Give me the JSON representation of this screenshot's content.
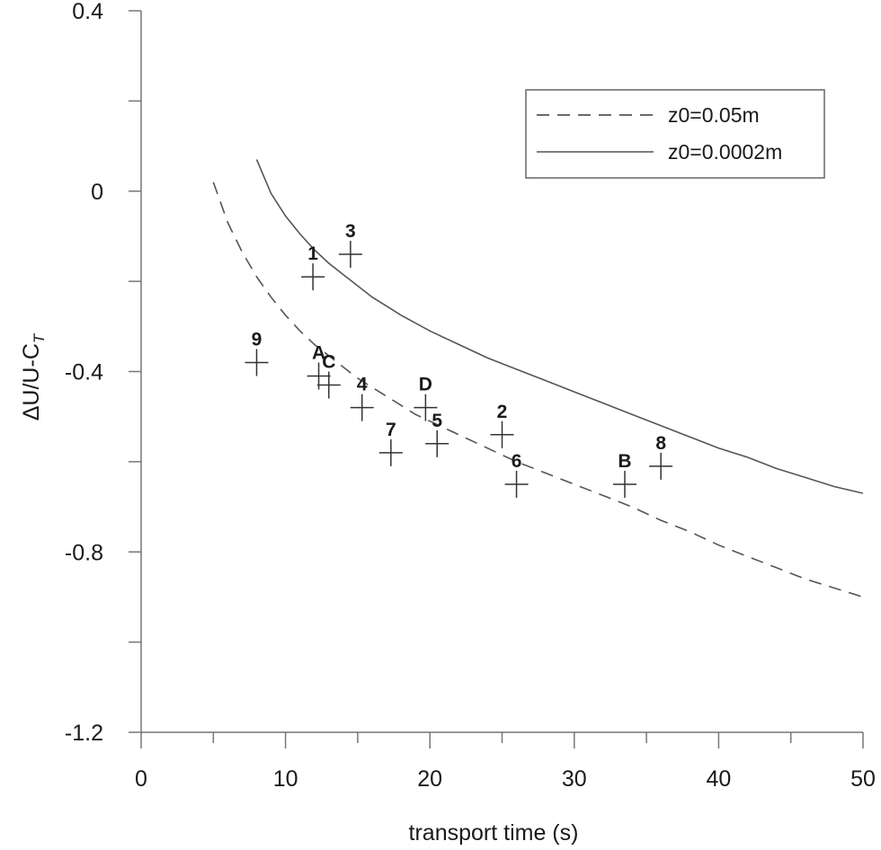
{
  "chart_data": {
    "type": "scatter",
    "title": "",
    "xlabel": "transport time (s)",
    "ylabel": "ΔU/U-C",
    "ylabel_subscript": "T",
    "xlim": [
      0,
      50
    ],
    "ylim": [
      -1.2,
      0.4
    ],
    "x_ticks": [
      0,
      10,
      20,
      30,
      40,
      50
    ],
    "x_tick_labels": [
      "0",
      "10",
      "20",
      "30",
      "40",
      "50"
    ],
    "x_minor_step": 5,
    "y_ticks": [
      -1.2,
      -0.8,
      -0.4,
      0,
      0.4
    ],
    "y_tick_labels": [
      "-1.2",
      "-0.8",
      "-0.4",
      "0",
      "0.4"
    ],
    "y_minor_step": 0.2,
    "grid": false,
    "legend_position": "top-right",
    "series": [
      {
        "name": "z0=0.05m",
        "style": "dashed",
        "color": "#555555",
        "x": [
          5,
          6,
          7,
          8,
          9,
          10,
          11,
          12,
          13,
          14,
          15,
          16,
          17,
          18,
          19,
          20,
          22,
          24,
          26,
          28,
          30,
          32,
          34,
          36,
          38,
          40,
          42,
          44,
          46,
          48,
          50
        ],
        "y": [
          0.02,
          -0.07,
          -0.135,
          -0.19,
          -0.235,
          -0.275,
          -0.31,
          -0.34,
          -0.365,
          -0.39,
          -0.415,
          -0.435,
          -0.455,
          -0.475,
          -0.495,
          -0.51,
          -0.54,
          -0.57,
          -0.6,
          -0.625,
          -0.65,
          -0.675,
          -0.7,
          -0.73,
          -0.755,
          -0.785,
          -0.81,
          -0.835,
          -0.86,
          -0.88,
          -0.9
        ]
      },
      {
        "name": "z0=0.0002m",
        "style": "solid",
        "color": "#555555",
        "x": [
          8,
          9,
          10,
          11,
          12,
          13,
          14,
          15,
          16,
          17,
          18,
          20,
          22,
          24,
          26,
          28,
          30,
          32,
          34,
          36,
          38,
          40,
          42,
          44,
          46,
          48,
          50
        ],
        "y": [
          0.07,
          -0.005,
          -0.055,
          -0.095,
          -0.13,
          -0.16,
          -0.185,
          -0.21,
          -0.235,
          -0.255,
          -0.275,
          -0.31,
          -0.34,
          -0.37,
          -0.395,
          -0.42,
          -0.445,
          -0.47,
          -0.495,
          -0.52,
          -0.545,
          -0.57,
          -0.59,
          -0.615,
          -0.635,
          -0.655,
          -0.67
        ]
      }
    ],
    "points": [
      {
        "label": "1",
        "x": 11.9,
        "y": -0.19
      },
      {
        "label": "3",
        "x": 14.5,
        "y": -0.14
      },
      {
        "label": "9",
        "x": 8.0,
        "y": -0.38
      },
      {
        "label": "A",
        "x": 12.3,
        "y": -0.41
      },
      {
        "label": "C",
        "x": 13.0,
        "y": -0.43
      },
      {
        "label": "4",
        "x": 15.3,
        "y": -0.48
      },
      {
        "label": "D",
        "x": 19.7,
        "y": -0.48
      },
      {
        "label": "7",
        "x": 17.3,
        "y": -0.58
      },
      {
        "label": "5",
        "x": 20.5,
        "y": -0.56
      },
      {
        "label": "2",
        "x": 25.0,
        "y": -0.54
      },
      {
        "label": "6",
        "x": 26.0,
        "y": -0.65
      },
      {
        "label": "B",
        "x": 33.5,
        "y": -0.65
      },
      {
        "label": "8",
        "x": 36.0,
        "y": -0.61
      }
    ]
  }
}
